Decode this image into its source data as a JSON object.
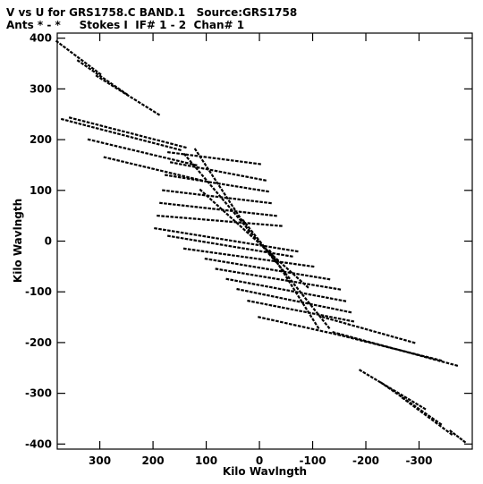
{
  "title_line1": "V vs U for GRS1758.C BAND.1   Source:GRS1758",
  "title_line2": "Ants * - *     Stokes I  IF# 1 - 2  Chan# 1",
  "chart_data": {
    "type": "scatter",
    "xlabel": "Kilo Wavlngth",
    "ylabel": "Kilo Wavlngth",
    "xlim": [
      380,
      -400
    ],
    "ylim": [
      -410,
      410
    ],
    "xticks": [
      300,
      200,
      100,
      0,
      -100,
      -200,
      -300
    ],
    "yticks": [
      400,
      300,
      200,
      100,
      0,
      -100,
      -200,
      -300,
      -400
    ],
    "tracks": [
      {
        "u0": 355,
        "v0": 243,
        "u1": 140,
        "v1": 185
      },
      {
        "u0": 370,
        "v0": 240,
        "u1": 150,
        "v1": 180
      },
      {
        "u0": 320,
        "v0": 200,
        "u1": 120,
        "v1": 150
      },
      {
        "u0": 290,
        "v0": 165,
        "u1": 110,
        "v1": 120
      },
      {
        "u0": 170,
        "v0": 175,
        "u1": 0,
        "v1": 152
      },
      {
        "u0": 165,
        "v0": 155,
        "u1": -10,
        "v1": 120
      },
      {
        "u0": 175,
        "v0": 130,
        "u1": -15,
        "v1": 98
      },
      {
        "u0": 180,
        "v0": 100,
        "u1": -20,
        "v1": 75
      },
      {
        "u0": 185,
        "v0": 75,
        "u1": -30,
        "v1": 50
      },
      {
        "u0": 190,
        "v0": 50,
        "u1": -40,
        "v1": 30
      },
      {
        "u0": 195,
        "v0": 25,
        "u1": -70,
        "v1": -20
      },
      {
        "u0": 170,
        "v0": 10,
        "u1": -60,
        "v1": -30
      },
      {
        "u0": 140,
        "v0": -15,
        "u1": -100,
        "v1": -50
      },
      {
        "u0": 100,
        "v0": -35,
        "u1": -130,
        "v1": -75
      },
      {
        "u0": 80,
        "v0": -55,
        "u1": -150,
        "v1": -95
      },
      {
        "u0": 60,
        "v0": -75,
        "u1": -160,
        "v1": -118
      },
      {
        "u0": 40,
        "v0": -95,
        "u1": -170,
        "v1": -140
      },
      {
        "u0": 20,
        "v0": -118,
        "u1": -175,
        "v1": -158
      },
      {
        "u0": 0,
        "v0": -150,
        "u1": -150,
        "v1": -185
      },
      {
        "u0": -120,
        "v0": -150,
        "u1": -290,
        "v1": -200
      },
      {
        "u0": -150,
        "v0": -185,
        "u1": -340,
        "v1": -235
      },
      {
        "u0": -140,
        "v0": -180,
        "u1": -370,
        "v1": -245
      },
      {
        "u0": 380,
        "v0": 393,
        "u1": 300,
        "v1": 330
      },
      {
        "u0": 340,
        "v0": 355,
        "u1": 250,
        "v1": 290
      },
      {
        "u0": 305,
        "v0": 325,
        "u1": 190,
        "v1": 250
      },
      {
        "u0": -190,
        "v0": -255,
        "u1": -310,
        "v1": -330
      },
      {
        "u0": -230,
        "v0": -280,
        "u1": -340,
        "v1": -360
      },
      {
        "u0": -270,
        "v0": -310,
        "u1": -360,
        "v1": -380
      },
      {
        "u0": 140,
        "v0": 170,
        "u1": -30,
        "v1": -40
      },
      {
        "u0": 30,
        "v0": 40,
        "u1": -130,
        "v1": -170
      },
      {
        "u0": 120,
        "v0": 180,
        "u1": 20,
        "v1": 20
      },
      {
        "u0": -20,
        "v0": -20,
        "u1": -110,
        "v1": -170
      },
      {
        "u0": 110,
        "v0": 100,
        "u1": -90,
        "v1": -90
      },
      {
        "u0": -360,
        "v0": -375,
        "u1": -385,
        "v1": -395
      }
    ]
  }
}
